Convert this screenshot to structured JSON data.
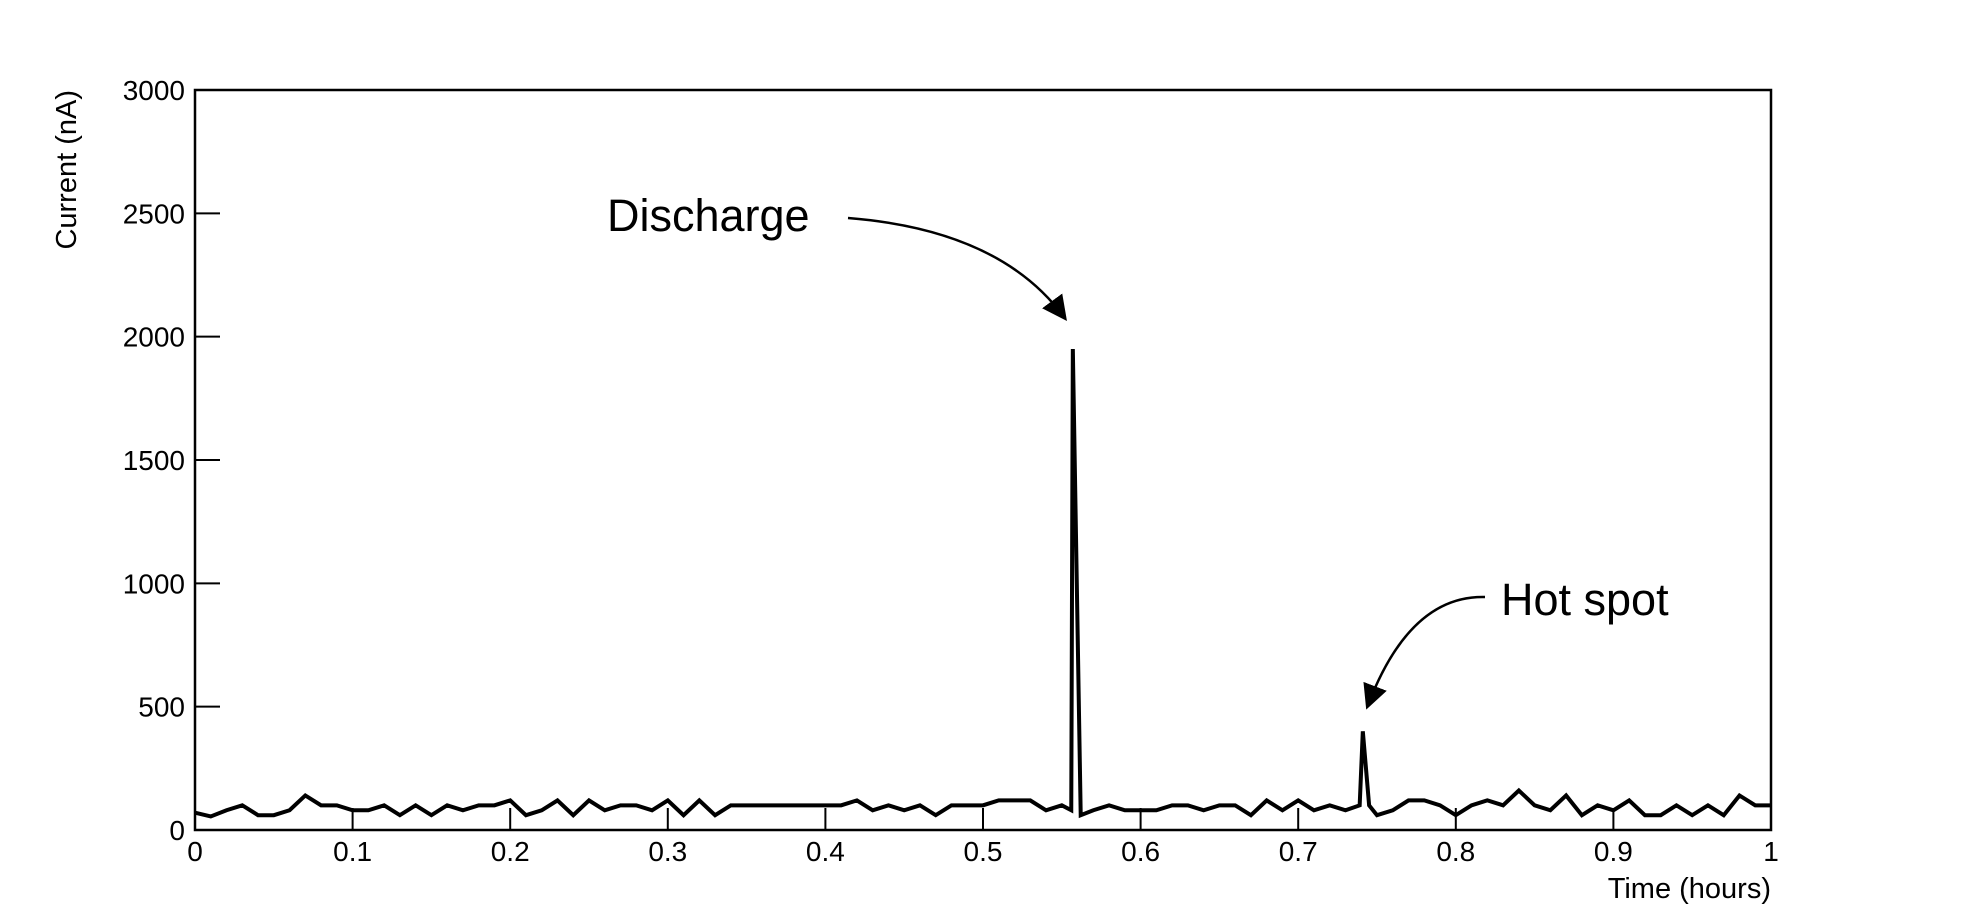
{
  "chart_data": {
    "type": "line",
    "x_label": "Time (hours)",
    "y_label": "Current (nA)",
    "annotations": [
      "Discharge",
      "Hot spot"
    ],
    "xlim": [
      0,
      1
    ],
    "ylim": [
      0,
      3000
    ],
    "xticks": [
      0,
      0.1,
      0.2,
      0.3,
      0.4,
      0.5,
      0.6,
      0.7,
      0.8,
      0.9,
      1
    ],
    "yticks": [
      0,
      500,
      1000,
      1500,
      2000,
      2500,
      3000
    ],
    "series": [
      {
        "color": "#000000",
        "x": [
          0,
          0.01,
          0.02,
          0.03,
          0.04,
          0.05,
          0.06,
          0.07,
          0.08,
          0.09,
          0.1,
          0.11,
          0.12,
          0.13,
          0.14,
          0.15,
          0.16,
          0.17,
          0.18,
          0.19,
          0.2,
          0.21,
          0.22,
          0.23,
          0.24,
          0.25,
          0.26,
          0.27,
          0.28,
          0.29,
          0.3,
          0.31,
          0.32,
          0.33,
          0.34,
          0.35,
          0.36,
          0.37,
          0.38,
          0.39,
          0.4,
          0.41,
          0.42,
          0.43,
          0.44,
          0.45,
          0.46,
          0.47,
          0.48,
          0.49,
          0.5,
          0.51,
          0.52,
          0.53,
          0.54,
          0.55,
          0.556,
          0.557,
          0.562,
          0.57,
          0.58,
          0.59,
          0.6,
          0.61,
          0.62,
          0.63,
          0.64,
          0.65,
          0.66,
          0.67,
          0.68,
          0.69,
          0.7,
          0.71,
          0.72,
          0.73,
          0.739,
          0.741,
          0.745,
          0.75,
          0.76,
          0.77,
          0.78,
          0.79,
          0.8,
          0.81,
          0.82,
          0.83,
          0.84,
          0.85,
          0.86,
          0.87,
          0.88,
          0.89,
          0.9,
          0.91,
          0.92,
          0.93,
          0.94,
          0.95,
          0.96,
          0.97,
          0.98,
          0.99,
          1
        ],
        "values": [
          70,
          55,
          80,
          100,
          60,
          60,
          80,
          140,
          100,
          100,
          80,
          80,
          100,
          60,
          100,
          60,
          100,
          80,
          100,
          100,
          120,
          60,
          80,
          120,
          60,
          120,
          80,
          100,
          100,
          80,
          120,
          60,
          120,
          60,
          100,
          100,
          100,
          100,
          100,
          100,
          100,
          100,
          120,
          80,
          100,
          80,
          100,
          60,
          100,
          100,
          100,
          120,
          120,
          120,
          80,
          100,
          80,
          1950,
          60,
          80,
          100,
          80,
          80,
          80,
          100,
          100,
          80,
          100,
          100,
          60,
          120,
          80,
          120,
          80,
          100,
          80,
          100,
          400,
          100,
          60,
          80,
          120,
          120,
          100,
          60,
          100,
          120,
          100,
          160,
          100,
          80,
          140,
          60,
          100,
          80,
          120,
          60,
          60,
          100,
          60,
          100,
          60,
          140,
          100,
          100
        ]
      }
    ]
  }
}
